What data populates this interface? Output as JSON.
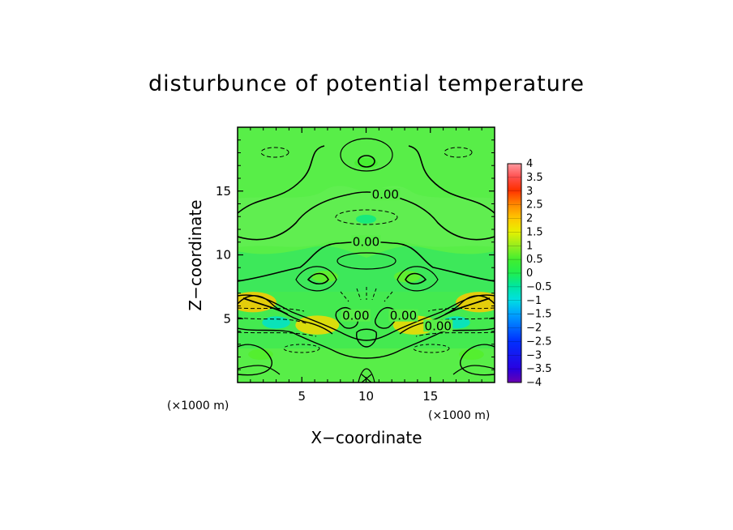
{
  "chart_data": {
    "type": "heatmap",
    "title": "disturbunce of potential temperature",
    "xlabel": "X−coordinate",
    "ylabel": "Z−coordinate",
    "x_unit_label": "(×1000 m)",
    "y_unit_label": "(×1000 m)",
    "xlim": [
      0,
      20
    ],
    "ylim": [
      0,
      20
    ],
    "x_ticks": [
      5,
      10,
      15
    ],
    "y_ticks": [
      5,
      10,
      15
    ],
    "x_tick_labels": [
      "5",
      "10",
      "15"
    ],
    "y_tick_labels": [
      "5",
      "10",
      "15"
    ],
    "colorbar": {
      "range": [
        -4,
        4
      ],
      "tick_values": [
        4,
        3.5,
        3,
        2.5,
        2,
        1.5,
        1,
        0.5,
        0,
        -0.5,
        -1,
        -1.5,
        -2,
        -2.5,
        -3,
        -3.5,
        -4
      ],
      "tick_labels": [
        "4",
        "3.5",
        "3",
        "2.5",
        "2",
        "1.5",
        "1",
        "0.5",
        "0",
        "−0.5",
        "−1",
        "−1.5",
        "−2",
        "−2.5",
        "−3",
        "−3.5",
        "−4"
      ]
    },
    "contour_labels": [
      {
        "text": "0.00",
        "x": 11.5,
        "z": 14.6
      },
      {
        "text": "0.00",
        "x": 10.0,
        "z": 10.9
      },
      {
        "text": "0.00",
        "x": 9.2,
        "z": 5.1
      },
      {
        "text": "0.00",
        "x": 12.9,
        "z": 5.1
      },
      {
        "text": "0.00",
        "x": 15.6,
        "z": 4.3
      }
    ],
    "features": [
      {
        "kind": "warm",
        "x": 10.0,
        "z": 17.2,
        "value": 0.5
      },
      {
        "kind": "cool",
        "x": 10.0,
        "z": 12.8,
        "value": -0.3
      },
      {
        "kind": "warm",
        "x": 6.8,
        "z": 8.3,
        "value": 0.7
      },
      {
        "kind": "warm",
        "x": 13.2,
        "z": 8.3,
        "value": 0.7
      },
      {
        "kind": "warm",
        "x": 1.2,
        "z": 6.3,
        "value": 2.0
      },
      {
        "kind": "warm",
        "x": 18.8,
        "z": 6.3,
        "value": 2.0
      },
      {
        "kind": "warm",
        "x": 6.2,
        "z": 4.5,
        "value": 1.8
      },
      {
        "kind": "warm",
        "x": 13.8,
        "z": 4.5,
        "value": 1.8
      },
      {
        "kind": "cool",
        "x": 3.0,
        "z": 4.7,
        "value": -0.8
      },
      {
        "kind": "cool",
        "x": 17.0,
        "z": 4.7,
        "value": -0.8
      },
      {
        "kind": "warm",
        "x": 1.8,
        "z": 2.2,
        "value": 0.6
      },
      {
        "kind": "warm",
        "x": 18.2,
        "z": 2.2,
        "value": 0.6
      }
    ]
  }
}
